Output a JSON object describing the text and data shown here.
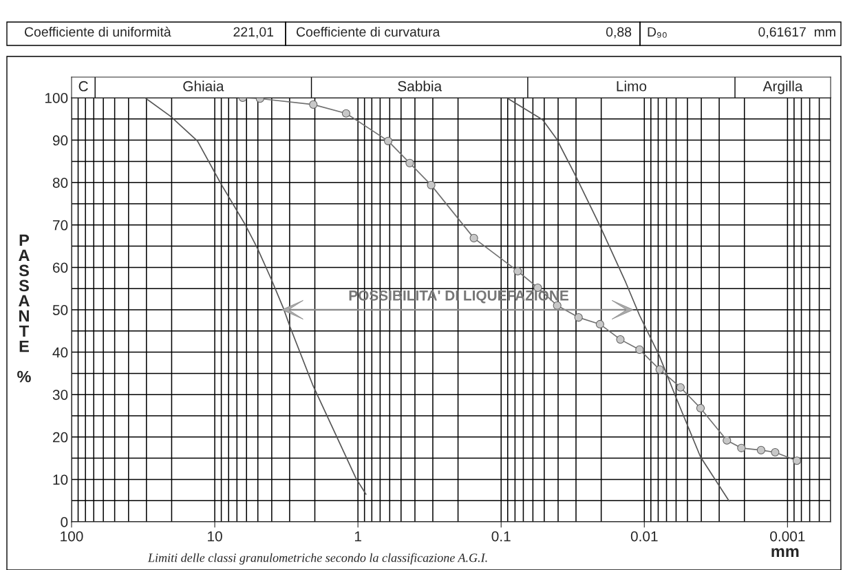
{
  "chart_data": {
    "type": "line",
    "xlabel": "mm",
    "ylabel": "PASSANTE %",
    "log": "x",
    "xlim": [
      100,
      0.0005
    ],
    "xticks": [
      100,
      10,
      1,
      0.1,
      0.01,
      0.001
    ],
    "ylim": [
      0,
      100
    ],
    "yticks": [
      0,
      10,
      20,
      30,
      40,
      50,
      60,
      70,
      80,
      90,
      100
    ],
    "grid": true,
    "legend": false,
    "series": [
      {
        "marker": "circle",
        "color": "#707070",
        "x": [
          6.38,
          4.83,
          2.05,
          1.21,
          0.615,
          0.435,
          0.308,
          0.155,
          0.0766,
          0.0555,
          0.0406,
          0.0288,
          0.0204,
          0.0147,
          0.0108,
          0.00781,
          0.00559,
          0.00405,
          0.00265,
          0.0021,
          0.00153,
          0.00122,
          0.00086
        ],
        "values": [
          100,
          99.8,
          98.4,
          96.3,
          89.8,
          84.6,
          79.4,
          66.9,
          59.1,
          55.2,
          51.0,
          48.2,
          46.6,
          43.0,
          40.6,
          35.9,
          31.7,
          26.8,
          19.2,
          17.4,
          16.9,
          16.4,
          14.4
        ]
      },
      {
        "marker": "none",
        "color": "#555555",
        "x": [
          30.7,
          20.3,
          13.2,
          9.12,
          6.18,
          5.05,
          4.04,
          3.31,
          2.99,
          2.07,
          1.03,
          0.879
        ],
        "values": [
          100,
          95.6,
          89.8,
          79.9,
          70.3,
          64.6,
          57.3,
          50.3,
          46.1,
          32.3,
          10.2,
          6.5
        ]
      },
      {
        "marker": "none",
        "color": "#555555",
        "x": [
          0.0895,
          0.0513,
          0.041,
          0.0304,
          0.0204,
          0.0135,
          0.0108,
          0.00789,
          0.00604,
          0.00405,
          0.00256
        ],
        "values": [
          99.8,
          94.8,
          90.3,
          81.8,
          69.8,
          56.5,
          48.7,
          39.3,
          29.5,
          15.3,
          4.9
        ]
      }
    ],
    "annotations": [
      "Coefficiente di uniformità",
      "221,01",
      "Coefficiente di curvatura",
      "0,88",
      "D₉₀",
      "0,61617  mm",
      "Limiti delle classi granulometriche secondo la classificazione A.G.I.",
      "C",
      "Ghiaia",
      "Sabbia",
      "Limo",
      "Argilla",
      "POSSIBILITA' DI LIQUEFAZIONE"
    ]
  }
}
